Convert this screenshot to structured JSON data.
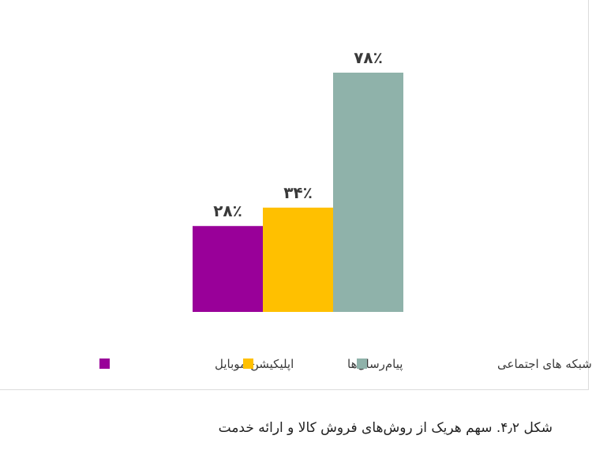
{
  "caption": "شکل ۴٫۲. سهم هریک از روش‌های فروش کالا و ارائه خدمت",
  "chart_data": {
    "type": "bar",
    "title": "",
    "xlabel": "",
    "ylabel": "",
    "ylim": [
      0,
      78
    ],
    "grid": false,
    "legend_position": "bottom",
    "categories": [
      "اپلیکیشن موبایل",
      "پیام‌رسان‌ها",
      "شبکه های اجتماعی"
    ],
    "values": [
      28,
      34,
      78
    ],
    "value_labels": [
      "۲۸٪",
      "۳۴٪",
      "۷۸٪"
    ],
    "colors": [
      "#990099",
      "#ffc000",
      "#8fb2aa"
    ],
    "legend": [
      {
        "label": "اپلیکیشن موبایل",
        "color": "#990099"
      },
      {
        "label": "پیام‌رسان‌ها",
        "color": "#ffc000"
      },
      {
        "label": "شبکه های اجتماعی",
        "color": "#8fb2aa"
      }
    ]
  }
}
